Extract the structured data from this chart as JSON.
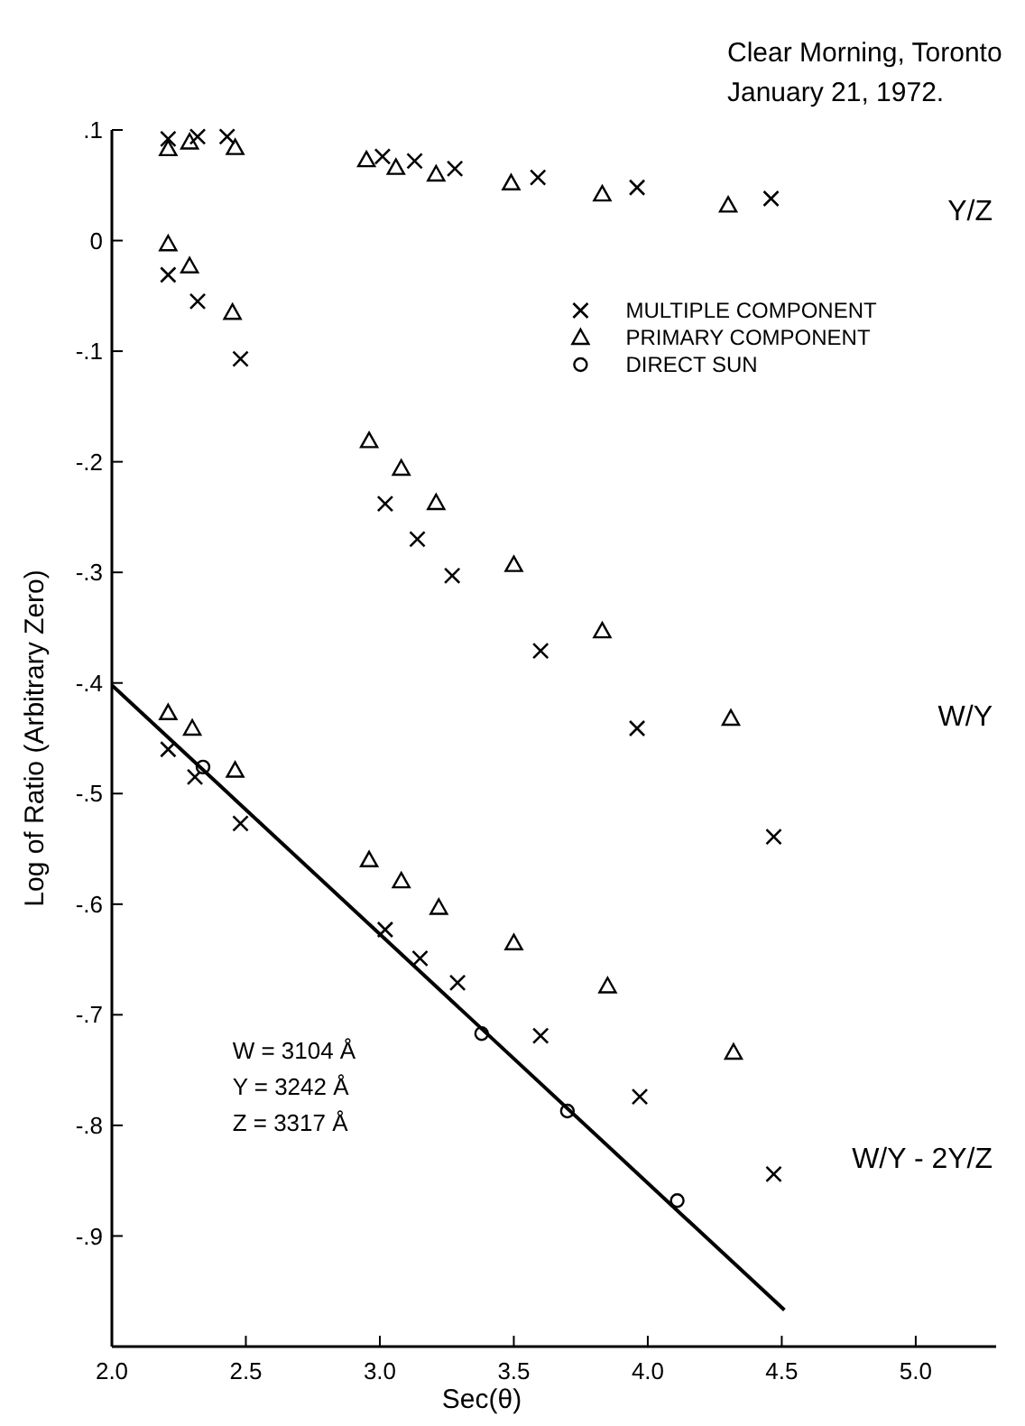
{
  "chart_data": {
    "type": "scatter",
    "title": "Clear Morning, Toronto",
    "subtitle": "January 21, 1972.",
    "xlabel": "Sec(θ)",
    "ylabel": "Log of Ratio (Arbitrary Zero)",
    "xlim": [
      2.0,
      5.3
    ],
    "ylim": [
      -1.0,
      0.1
    ],
    "xticks": [
      {
        "value": 2,
        "label": "2.0"
      },
      2.5,
      {
        "value": 3,
        "label": "3.0"
      },
      3.5,
      {
        "value": 4,
        "label": "4.0"
      },
      4.5,
      {
        "value": 5,
        "label": "5.0"
      }
    ],
    "yticks": [
      {
        "value": 0.1,
        "label": ".1"
      },
      0,
      {
        "value": -0.1,
        "label": "-.1"
      },
      {
        "value": -0.2,
        "label": "-.2"
      },
      {
        "value": -0.3,
        "label": "-.3"
      },
      {
        "value": -0.4,
        "label": "-.4"
      },
      {
        "value": -0.5,
        "label": "-.5"
      },
      {
        "value": -0.6,
        "label": "-.6"
      },
      {
        "value": -0.7,
        "label": "-.7"
      },
      {
        "value": -0.8,
        "label": "-.8"
      },
      {
        "value": -0.9,
        "label": "-.9"
      }
    ],
    "grid": false,
    "legend": "top right",
    "series": [
      {
        "name": "MULTIPLE COMPONENT",
        "color": "#000000",
        "marker": "cross",
        "x": [
          2.21,
          2.32,
          2.43,
          3.01,
          3.13,
          3.28,
          3.59,
          3.96,
          4.46,
          2.21,
          2.32,
          2.48,
          3.02,
          3.14,
          3.27,
          3.6,
          3.96,
          4.47,
          2.21,
          2.31,
          2.48,
          3.02,
          3.15,
          3.29,
          3.6,
          3.97,
          4.47
        ],
        "values": [
          0.092,
          0.094,
          0.094,
          0.076,
          0.072,
          0.065,
          0.057,
          0.048,
          0.038,
          -0.031,
          -0.055,
          -0.107,
          -0.238,
          -0.27,
          -0.303,
          -0.371,
          -0.441,
          -0.539,
          -0.46,
          -0.485,
          -0.527,
          -0.623,
          -0.649,
          -0.671,
          -0.719,
          -0.774,
          -0.844
        ]
      },
      {
        "name": "PRIMARY COMPONENT",
        "color": "#000000",
        "marker": "triangle",
        "x": [
          2.21,
          2.29,
          2.46,
          2.95,
          3.06,
          3.21,
          3.49,
          3.83,
          4.3,
          2.21,
          2.29,
          2.45,
          2.96,
          3.08,
          3.21,
          3.5,
          3.83,
          4.31,
          2.21,
          2.3,
          2.46,
          2.96,
          3.08,
          3.22,
          3.5,
          3.85,
          4.32
        ],
        "values": [
          0.083,
          0.089,
          0.084,
          0.073,
          0.066,
          0.06,
          0.052,
          0.042,
          0.032,
          -0.003,
          -0.023,
          -0.065,
          -0.181,
          -0.206,
          -0.237,
          -0.293,
          -0.353,
          -0.432,
          -0.427,
          -0.441,
          -0.479,
          -0.56,
          -0.579,
          -0.603,
          -0.635,
          -0.674,
          -0.734
        ]
      },
      {
        "name": "DIRECT SUN",
        "color": "#000000",
        "marker": "circle",
        "x": [
          2.34,
          3.38,
          3.7,
          4.11
        ],
        "values": [
          -0.476,
          -0.717,
          -0.787,
          -0.868
        ]
      },
      {
        "type": "line",
        "color": "#000000",
        "marker": "none",
        "x": [
          2.0,
          4.51
        ],
        "values": [
          -0.402,
          -0.967
        ]
      }
    ],
    "annotations": [
      "Y/Z",
      "W/Y",
      "W/Y - 2Y/Z",
      "W = 3104 Å",
      "Y = 3242 Å",
      "Z = 3317 Å"
    ]
  }
}
